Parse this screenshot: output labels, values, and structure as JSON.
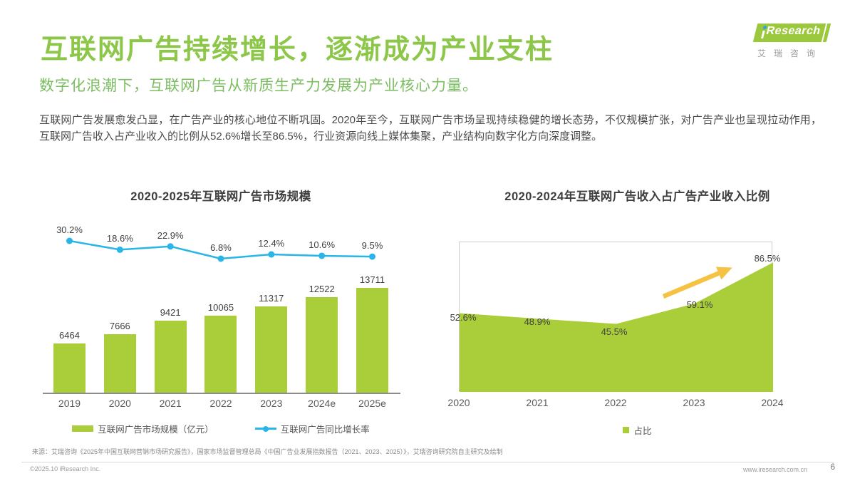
{
  "header": {
    "title": "互联网广告持续增长，逐渐成为产业支柱",
    "subtitle": "数字化浪潮下，互联网广告从新质生产力发展为产业核心力量。",
    "logo": {
      "text": "iResearch",
      "cn": "艾瑞咨询"
    }
  },
  "intro": "互联网广告发展愈发凸显，在广告产业的核心地位不断巩固。2020年至今，互联网广告市场呈现持续稳健的增长态势，不仅规模扩张，对广告产业也呈现拉动作用，互联网广告收入占产业收入的比例从52.6%增长至86.5%，行业资源向线上媒体集聚，产业结构向数字化方向深度调整。",
  "chart_data": [
    {
      "type": "bar",
      "title": "2020-2025年互联网广告市场规模",
      "categories": [
        "2019",
        "2020",
        "2021",
        "2022",
        "2023",
        "2024e",
        "2025e"
      ],
      "series": [
        {
          "name": "互联网广告市场规模（亿元）",
          "type": "bar",
          "values": [
            6464,
            7666,
            9421,
            10065,
            11317,
            12522,
            13711
          ],
          "color": "#A9CE39"
        },
        {
          "name": "互联网广告同比增长率",
          "type": "line",
          "unit": "%",
          "values": [
            30.2,
            18.6,
            22.9,
            6.8,
            12.4,
            10.6,
            9.5
          ],
          "color": "#29B5E8"
        }
      ],
      "grid": false,
      "legend_position": "bottom"
    },
    {
      "type": "area",
      "title": "2020-2024年互联网广告收入占广告产业收入比例",
      "categories": [
        "2020",
        "2021",
        "2022",
        "2023",
        "2024"
      ],
      "values": [
        52.6,
        48.9,
        45.5,
        59.1,
        86.5
      ],
      "unit": "%",
      "legend": "占比",
      "color": "#A9CE39",
      "ylim": [
        0,
        100
      ],
      "grid": false,
      "annotations": [
        "up-trend-arrow"
      ],
      "arrow_color": "#F6C243",
      "legend_position": "bottom"
    }
  ],
  "footer": {
    "source": "来源：艾瑞咨询《2025年中国互联网营销市场研究报告》，国家市场监督管理总局《中国广告业发展指数报告（2021、2023、2025）》，艾瑞咨询研究院自主研究及绘制",
    "copyright": "©2025.10 iResearch Inc.",
    "website": "www.iresearch.com.cn",
    "page": "6"
  }
}
